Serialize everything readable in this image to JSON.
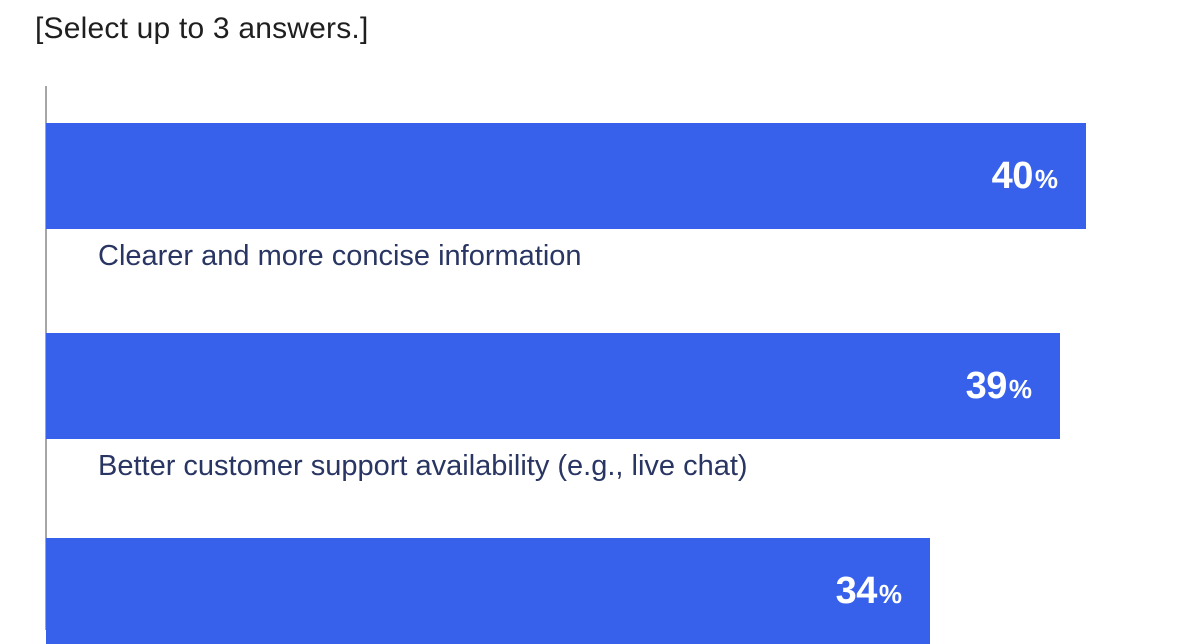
{
  "title": "[Select up to 3 answers.]",
  "chart_data": {
    "type": "bar",
    "orientation": "horizontal",
    "title": "[Select up to 3 answers.]",
    "categories": [
      "Clearer and more concise information",
      "Better customer support availability (e.g., live chat)",
      ""
    ],
    "values": [
      40,
      39,
      34
    ],
    "value_suffix": "%",
    "value_labels": [
      "40%",
      "39%",
      "34%"
    ],
    "grid": false,
    "legend": false,
    "value_label_position": "inside-end",
    "category_label_position": "below-bar",
    "note_visible_crop": "Third bar and its category label are cut off by the bottom edge of the image",
    "colors": {
      "bar": "#3761eb",
      "value_label": "#ffffff",
      "category_label": "#293562",
      "title": "#1f1f1f",
      "axis_line": "#a6a6a6",
      "background": "#ffffff"
    }
  }
}
